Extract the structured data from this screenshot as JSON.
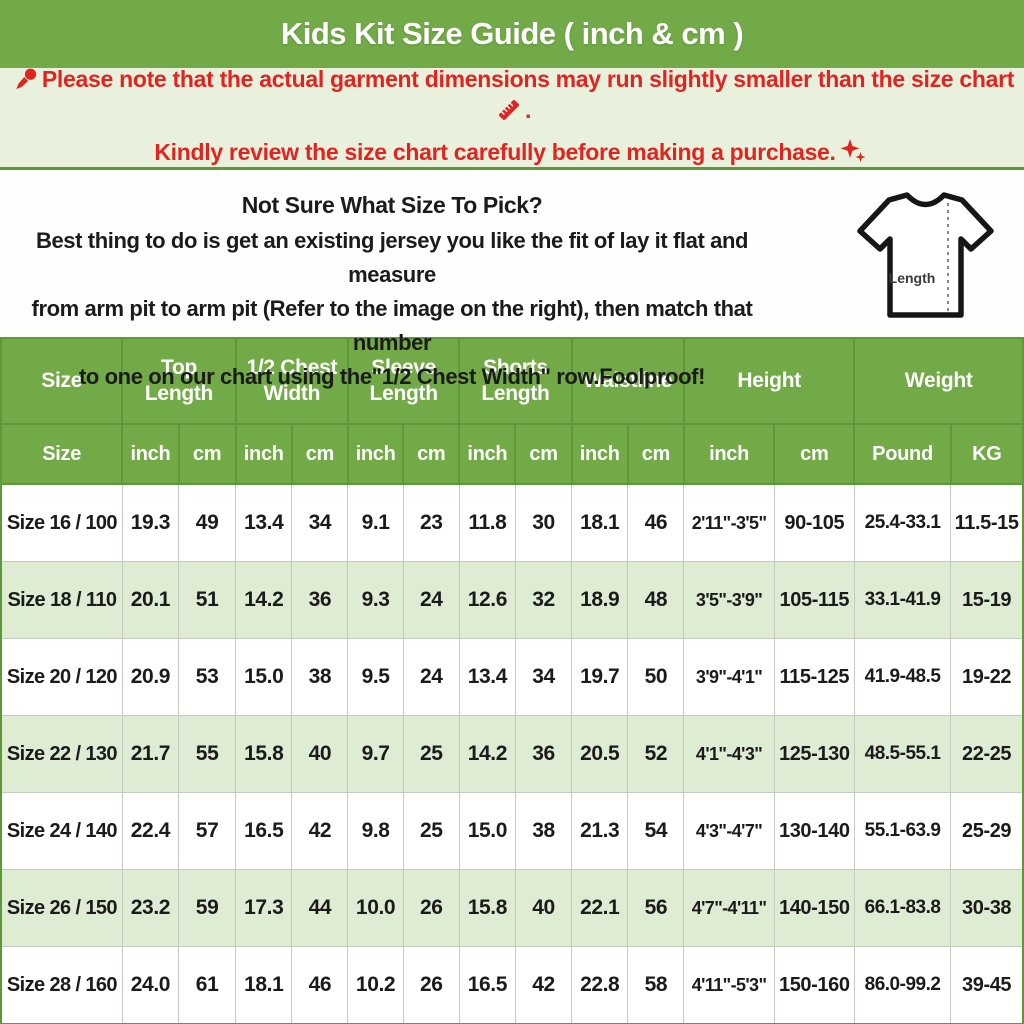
{
  "title": "Kids Kit Size Guide ( inch & cm )",
  "notice": {
    "line1": "Please note that the actual garment dimensions may run slightly smaller than the size chart",
    "line1_end": ".",
    "line2": "Kindly review the size chart carefully before making a purchase."
  },
  "icons": {
    "pushpin": "📌",
    "ruler": "📏",
    "sparkles": "✨"
  },
  "instructions": {
    "heading": "Not Sure What Size To Pick?",
    "line1": "Best thing to do is get an existing jersey you like the fit of lay it flat and measure",
    "line2": "from arm pit to arm pit (Refer to the image on the right), then match that number",
    "line3": "to one on our chart using the\"1/2 Chest Width\" row.Foolproof!",
    "shirt_label": "Length"
  },
  "table": {
    "group_headers": [
      {
        "label": "Size",
        "colspan": 1
      },
      {
        "label": "Top Length",
        "colspan": 2
      },
      {
        "label": "1/2 Chest Width",
        "colspan": 2
      },
      {
        "label": "Sleeve Length",
        "colspan": 2
      },
      {
        "label": "Shorts Length",
        "colspan": 2
      },
      {
        "label": "Waistline",
        "colspan": 2
      },
      {
        "label": "Height",
        "colspan": 2
      },
      {
        "label": "Weight",
        "colspan": 2
      }
    ],
    "sub_headers": [
      "Size",
      "inch",
      "cm",
      "inch",
      "cm",
      "inch",
      "cm",
      "inch",
      "cm",
      "inch",
      "cm",
      "inch",
      "cm",
      "Pound",
      "KG"
    ],
    "rows": [
      [
        "Size 16 / 100",
        "19.3",
        "49",
        "13.4",
        "34",
        "9.1",
        "23",
        "11.8",
        "30",
        "18.1",
        "46",
        "2'11\"-3'5\"",
        "90-105",
        "25.4-33.1",
        "11.5-15"
      ],
      [
        "Size 18 / 110",
        "20.1",
        "51",
        "14.2",
        "36",
        "9.3",
        "24",
        "12.6",
        "32",
        "18.9",
        "48",
        "3'5\"-3'9\"",
        "105-115",
        "33.1-41.9",
        "15-19"
      ],
      [
        "Size 20 / 120",
        "20.9",
        "53",
        "15.0",
        "38",
        "9.5",
        "24",
        "13.4",
        "34",
        "19.7",
        "50",
        "3'9\"-4'1\"",
        "115-125",
        "41.9-48.5",
        "19-22"
      ],
      [
        "Size 22 / 130",
        "21.7",
        "55",
        "15.8",
        "40",
        "9.7",
        "25",
        "14.2",
        "36",
        "20.5",
        "52",
        "4'1\"-4'3\"",
        "125-130",
        "48.5-55.1",
        "22-25"
      ],
      [
        "Size 24 / 140",
        "22.4",
        "57",
        "16.5",
        "42",
        "9.8",
        "25",
        "15.0",
        "38",
        "21.3",
        "54",
        "4'3\"-4'7\"",
        "130-140",
        "55.1-63.9",
        "25-29"
      ],
      [
        "Size 26 / 150",
        "23.2",
        "59",
        "17.3",
        "44",
        "10.0",
        "26",
        "15.8",
        "40",
        "22.1",
        "56",
        "4'7\"-4'11\"",
        "140-150",
        "66.1-83.8",
        "30-38"
      ],
      [
        "Size 28 / 160",
        "24.0",
        "61",
        "18.1",
        "46",
        "10.2",
        "26",
        "16.5",
        "42",
        "22.8",
        "58",
        "4'11\"-5'3\"",
        "150-160",
        "86.0-99.2",
        "39-45"
      ]
    ]
  },
  "colors": {
    "brand_green": "#72aa47",
    "dark_green": "#5e9839",
    "row_green": "#dfecd4",
    "notice_bg": "#e9f0dc",
    "alert_red": "#e22420",
    "text_dark": "#1b1b1b"
  }
}
